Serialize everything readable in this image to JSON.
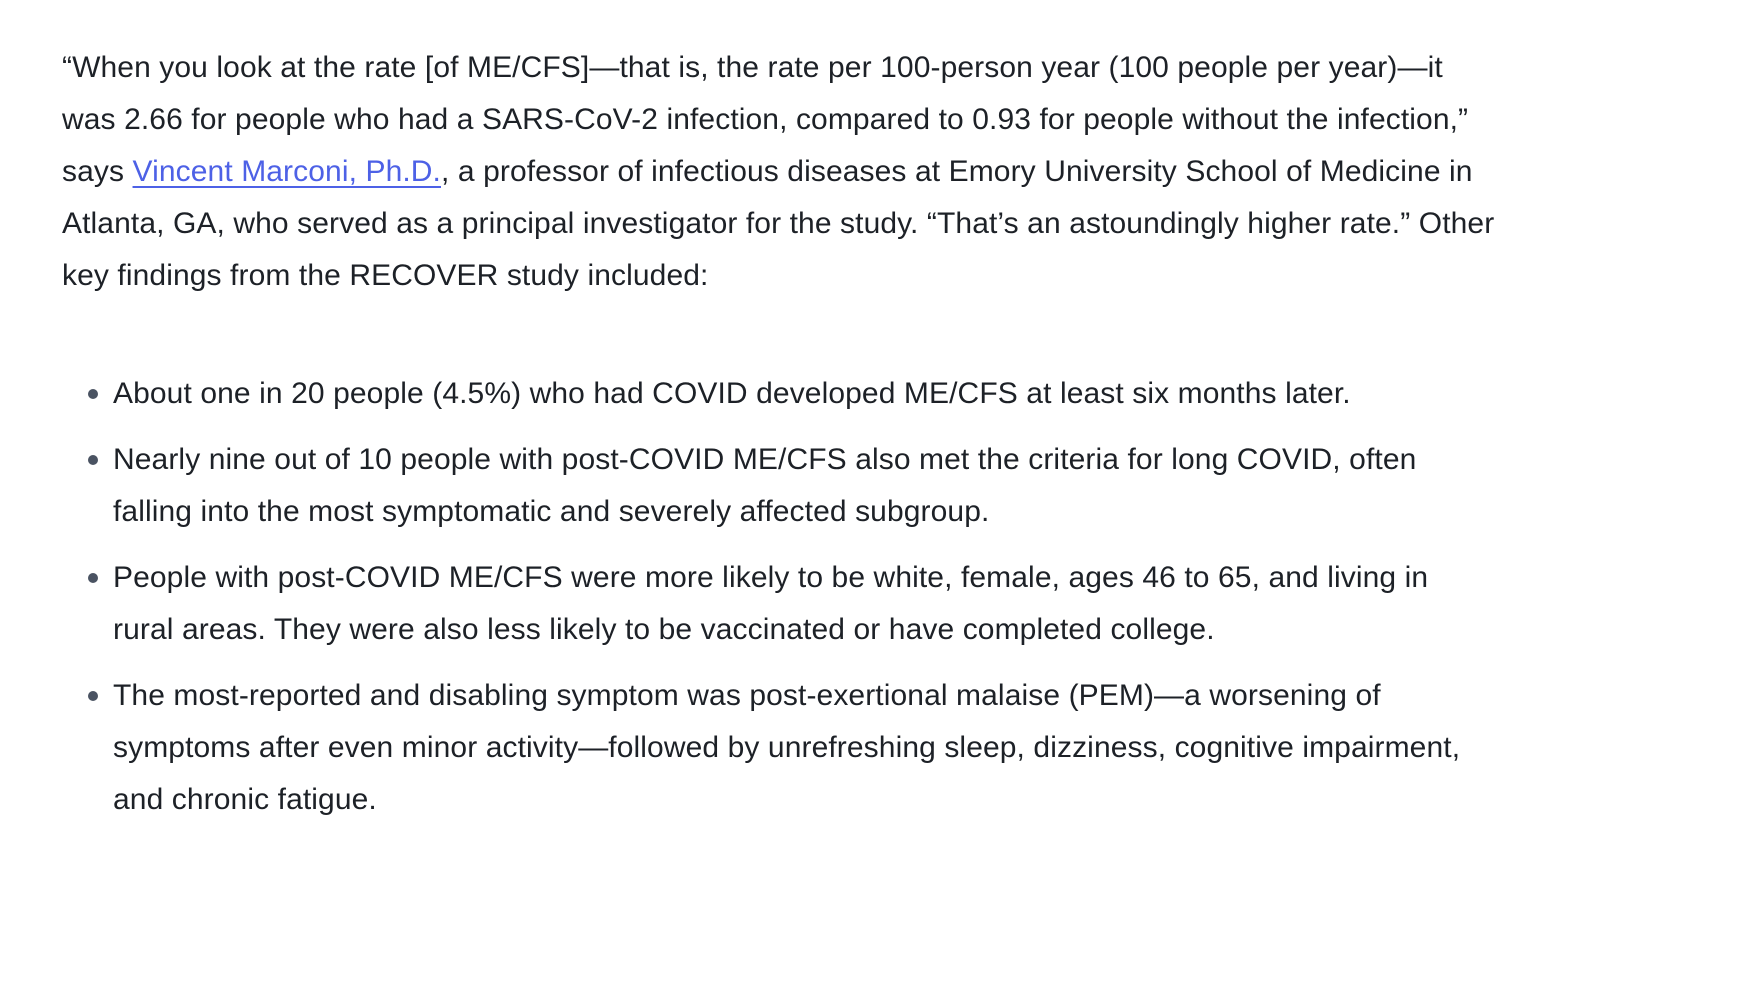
{
  "colors": {
    "link": "#4d61e6",
    "text": "#1d2127",
    "bullet": "#4a5362"
  },
  "article": {
    "paragraph": {
      "before_link": "“When you look at the rate [of ME/CFS]—that is, the rate per 100-person year (100 people per year)—it was 2.66 for people who had a SARS-CoV-2 infection, compared to 0.93 for people without the infection,” says ",
      "link_text": "Vincent Marconi, Ph.D.",
      "after_link": ", a professor of infectious diseases at Emory University School of Medicine in Atlanta, GA, who served as a principal investigator for the study. “That’s an astoundingly higher rate.” Other key findings from the RECOVER study included:"
    },
    "bullets": [
      "About one in 20 people (4.5%) who had COVID developed ME/CFS at least six months later.",
      "Nearly nine out of 10 people with post-COVID ME/CFS also met the criteria for long COVID, often falling into the most symptomatic and severely affected subgroup.",
      "People with post-COVID ME/CFS were more likely to be white, female, ages 46 to 65, and living in rural areas. They were also less likely to be vaccinated or have completed college.",
      "The most-reported and disabling symptom was post-exertional malaise (PEM)—a worsening of symptoms after even minor activity—followed by unrefreshing sleep, dizziness, cognitive impairment, and chronic fatigue."
    ]
  }
}
